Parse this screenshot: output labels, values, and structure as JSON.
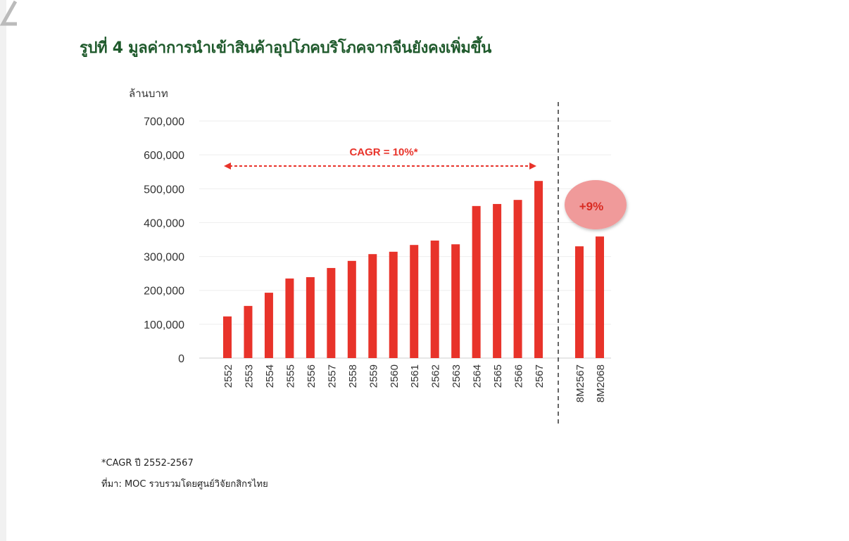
{
  "title": "รูปที่ 4 มูลค่าการนำเข้าสินค้าอุปโภคบริโภคจากจีนยังคงเพิ่มขึ้น",
  "chart_data": {
    "type": "bar",
    "ylabel": "ล้านบาท",
    "ylim": [
      0,
      700000
    ],
    "yticks": [
      "0",
      "100,000",
      "200,000",
      "300,000",
      "400,000",
      "500,000",
      "600,000",
      "700,000"
    ],
    "grid": true,
    "categories": [
      "2552",
      "2553",
      "2554",
      "2555",
      "2556",
      "2557",
      "2558",
      "2559",
      "2560",
      "2561",
      "2562",
      "2563",
      "2564",
      "2565",
      "2566",
      "2567",
      "8M2567",
      "8M2068"
    ],
    "values": [
      123000,
      154000,
      193000,
      235000,
      239000,
      266000,
      287000,
      307000,
      314000,
      334000,
      347000,
      336000,
      449000,
      455000,
      467000,
      523000,
      330000,
      359000
    ],
    "bar_color": "#e8332a",
    "annotations": {
      "cagr": "CAGR = 10%*",
      "growth": "+9%"
    }
  },
  "footnotes": {
    "cagr_note": "*CAGR ปี 2552-2567",
    "source": "ที่มา: MOC รวบรวมโดยศูนย์วิจัยกสิกรไทย"
  }
}
